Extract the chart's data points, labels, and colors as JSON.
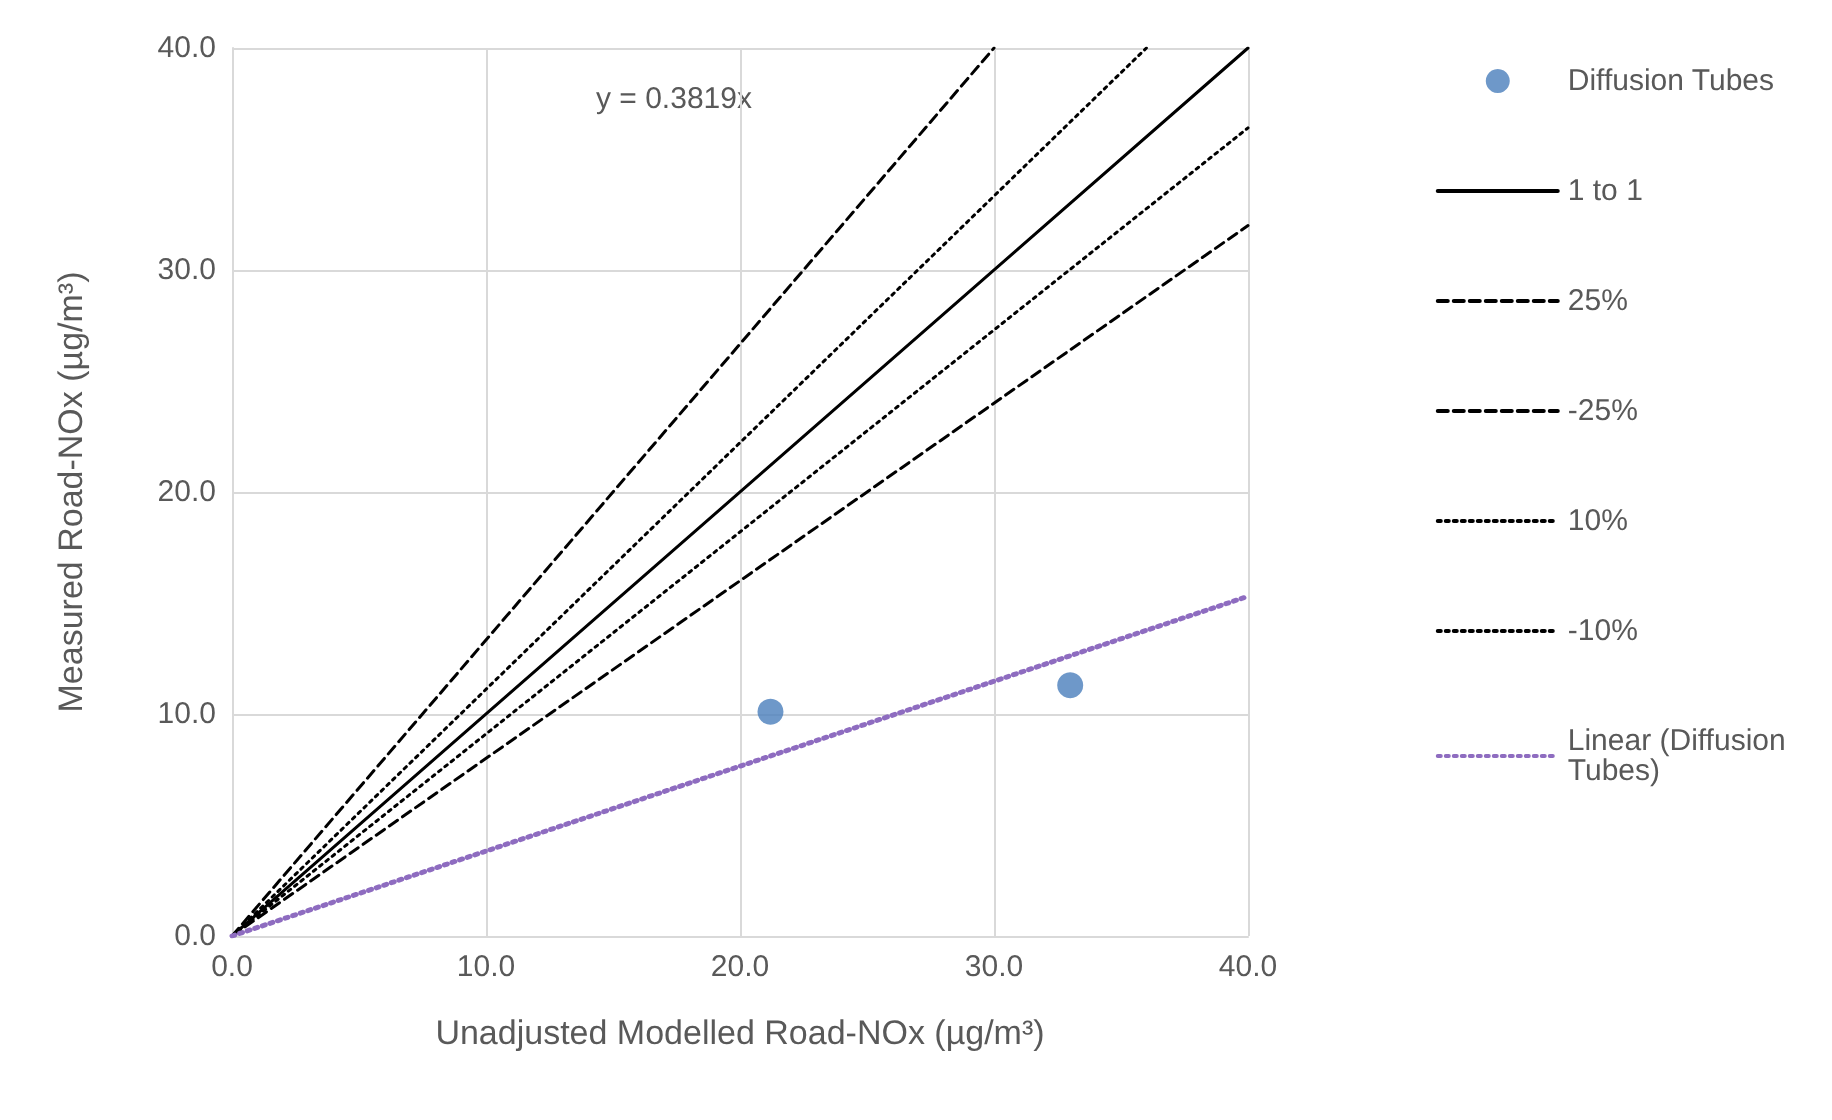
{
  "chart_data": {
    "type": "scatter",
    "xlabel": "Unadjusted Modelled Road-NOx (µg/m³)",
    "ylabel": "Measured Road-NOx (µg/m³)",
    "xlim": [
      0,
      40
    ],
    "ylim": [
      0,
      40
    ],
    "xticks": [
      {
        "value": 0,
        "label": "0.0"
      },
      {
        "value": 10,
        "label": "10.0"
      },
      {
        "value": 20,
        "label": "20.0"
      },
      {
        "value": 30,
        "label": "30.0"
      },
      {
        "value": 40,
        "label": "40.0"
      }
    ],
    "yticks": [
      {
        "value": 0,
        "label": "0.0"
      },
      {
        "value": 10,
        "label": "10.0"
      },
      {
        "value": 20,
        "label": "20.0"
      },
      {
        "value": 30,
        "label": "30.0"
      },
      {
        "value": 40,
        "label": "40.0"
      }
    ],
    "grid": true,
    "legend": "right",
    "annotations": [
      "y = 0.3819x"
    ],
    "series": [
      {
        "name": "Diffusion Tubes",
        "type": "scatter",
        "marker": "circle",
        "color": "#4a7ebb",
        "x": [
          21.2,
          33.0
        ],
        "values": [
          10.1,
          11.3
        ]
      },
      {
        "name": "1 to 1",
        "type": "line",
        "line_style": "solid",
        "color": "#000000",
        "x": [
          0,
          40
        ],
        "values": [
          0,
          40
        ]
      },
      {
        "name": "25%",
        "type": "line",
        "line_style": "dashed",
        "color": "#000000",
        "x": [
          0,
          30
        ],
        "values": [
          0,
          40
        ]
      },
      {
        "name": "-25%",
        "type": "line",
        "line_style": "dashed",
        "color": "#000000",
        "x": [
          0,
          40
        ],
        "values": [
          0,
          32
        ]
      },
      {
        "name": "10%",
        "type": "line",
        "line_style": "dotted",
        "color": "#000000",
        "x": [
          0,
          36
        ],
        "values": [
          0,
          40
        ]
      },
      {
        "name": "-10%",
        "type": "line",
        "line_style": "dotted",
        "color": "#000000",
        "x": [
          0,
          40
        ],
        "values": [
          0,
          36.4
        ]
      },
      {
        "name": "Linear (Diffusion Tubes)",
        "type": "line",
        "line_style": "dotted",
        "color": "#8e6cc0",
        "x": [
          0,
          40
        ],
        "values": [
          0,
          15.3
        ]
      }
    ]
  }
}
